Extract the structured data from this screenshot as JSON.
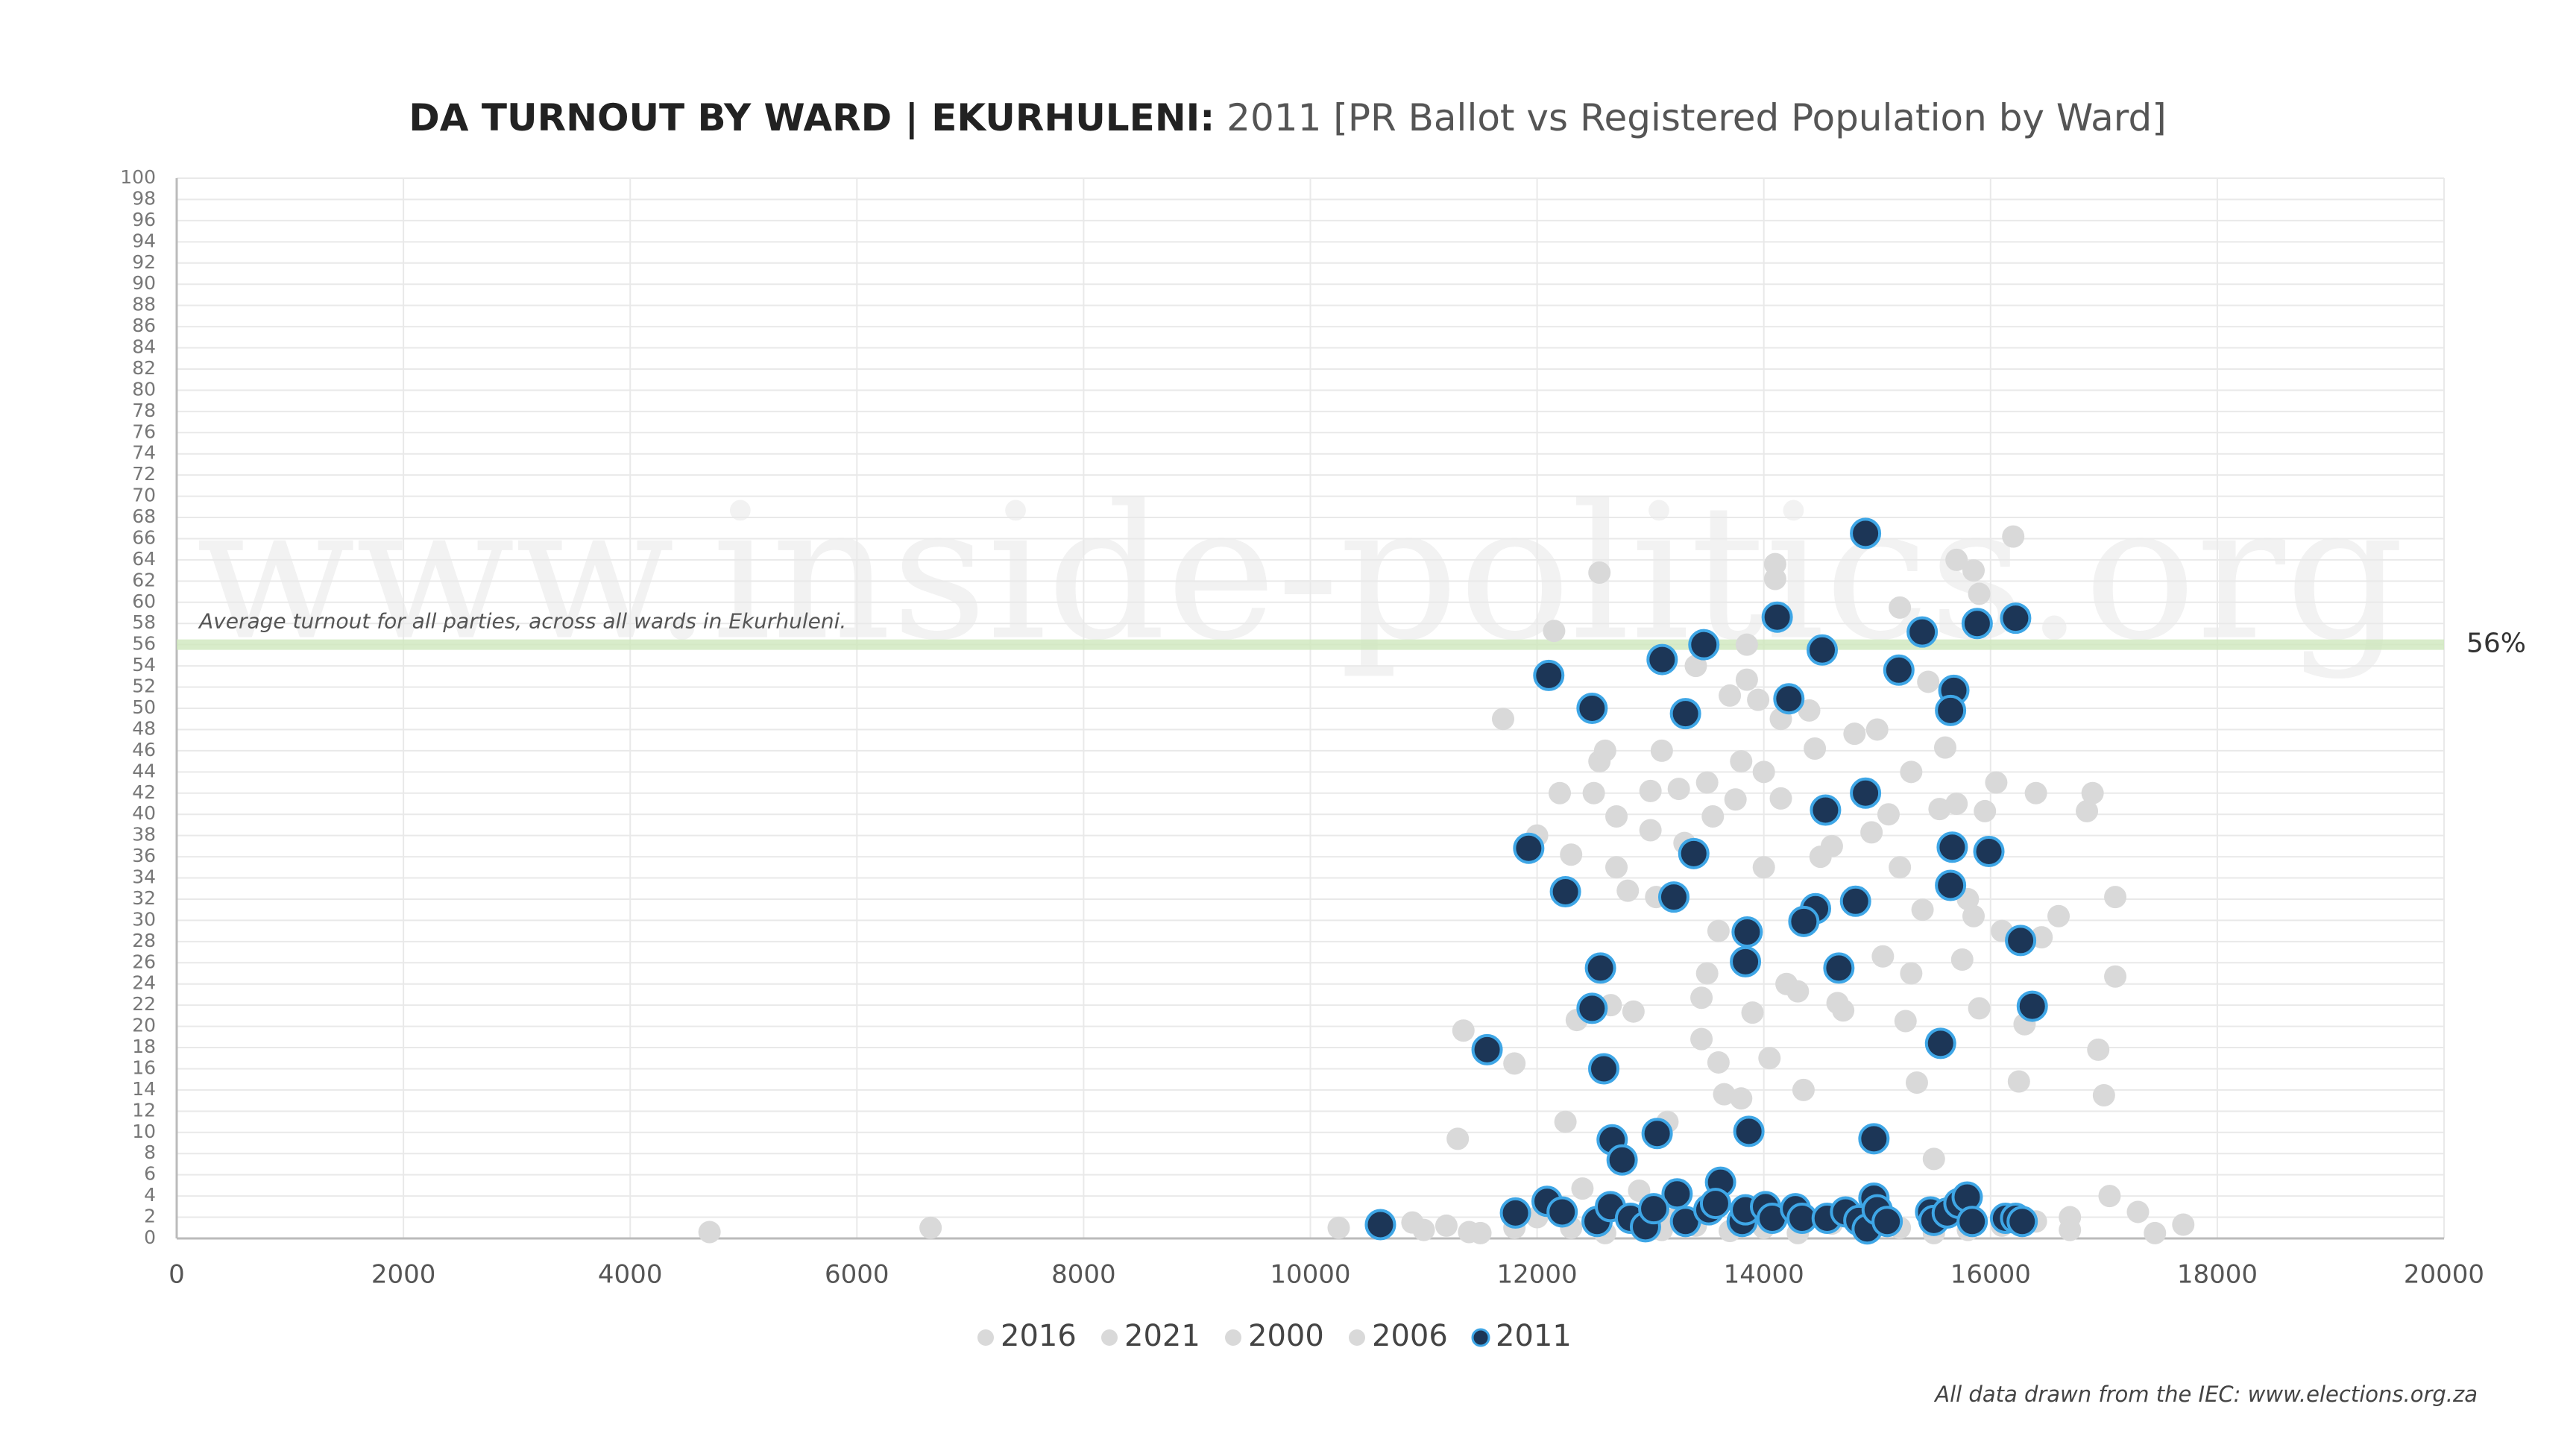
{
  "chart_data": {
    "type": "scatter",
    "title": "DA TURNOUT BY WARD | EKURHULENI:",
    "subtitle": "2011 [PR Ballot vs Registered Population by Ward]",
    "watermark": "www.inside-politics.org",
    "footer": "All data drawn from the IEC: www.elections.org.za",
    "reference_line": {
      "value": 56,
      "label": "56%",
      "note": "Average turnout for all parties, across all wards in Ekurhuleni.",
      "color": "#cfe8bd"
    },
    "xlim": [
      0,
      20000
    ],
    "xticks": [
      0,
      2000,
      4000,
      6000,
      8000,
      10000,
      12000,
      14000,
      16000,
      18000,
      20000
    ],
    "ylim": [
      0,
      100
    ],
    "yticks": [
      0,
      2,
      4,
      6,
      8,
      10,
      12,
      14,
      16,
      18,
      20,
      22,
      24,
      26,
      28,
      30,
      32,
      34,
      36,
      38,
      40,
      42,
      44,
      46,
      48,
      50,
      52,
      54,
      56,
      58,
      60,
      62,
      64,
      66,
      68,
      70,
      72,
      74,
      76,
      78,
      80,
      82,
      84,
      86,
      88,
      90,
      92,
      94,
      96,
      98,
      100
    ],
    "grid": true,
    "legend": "bottom",
    "series": [
      {
        "name": "2016",
        "color": "#d9d9d9",
        "stroke": "#d9d9d9",
        "x": [
          4700,
          6650,
          10250,
          10900,
          11000,
          11200,
          11400,
          11300,
          11350,
          11700,
          11800,
          12000,
          12150,
          12200,
          12250,
          12300,
          12350,
          12400,
          12500,
          12550,
          12550,
          12600,
          12650,
          12700,
          12700,
          12800,
          12850,
          12900,
          13000,
          13000,
          13050,
          13100,
          13150
        ],
        "values": [
          0.6,
          1,
          1,
          1.5,
          0.8,
          1.2,
          0.6,
          9.4,
          19.6,
          49,
          16.5,
          38,
          57.3,
          42,
          11,
          36.2,
          20.6,
          4.7,
          42,
          45,
          62.8,
          46,
          22,
          39.8,
          35,
          32.8,
          21.4,
          4.5,
          38.5,
          42.2,
          32.2,
          46,
          11
        ]
      },
      {
        "name": "2021",
        "color": "#d9d9d9",
        "stroke": "#d9d9d9",
        "x": [
          13200,
          13250,
          13300,
          13400,
          13450,
          13450,
          13500,
          13500,
          13550,
          13600,
          13600,
          13650,
          13700,
          13750,
          13800,
          13800,
          13850,
          13850,
          13900,
          13950,
          14000,
          14000,
          14050,
          14100,
          14100,
          14150,
          14150,
          14200,
          14300,
          14350,
          14400,
          14450,
          14500
        ],
        "values": [
          1.8,
          42.4,
          37.3,
          54,
          22.7,
          18.8,
          43,
          25,
          39.8,
          16.6,
          29,
          13.6,
          51.2,
          41.4,
          45,
          13.2,
          56,
          52.7,
          21.3,
          50.8,
          35,
          44,
          17,
          63.6,
          62.2,
          49,
          41.5,
          24,
          23.3,
          14,
          49.8,
          46.2,
          36
        ]
      },
      {
        "name": "2000",
        "color": "#d9d9d9",
        "stroke": "#d9d9d9",
        "x": [
          14600,
          14650,
          14700,
          14800,
          14900,
          14950,
          15000,
          15050,
          15100,
          15200,
          15200,
          15250,
          15300,
          15300,
          15350,
          15400,
          15450,
          15500,
          15550,
          15600,
          15700,
          15700,
          15750,
          15800,
          15850,
          15850,
          15900,
          15900,
          15950,
          16050,
          16100,
          16200,
          16250
        ],
        "values": [
          37,
          22.2,
          21.5,
          47.6,
          42,
          38.3,
          48,
          26.6,
          40,
          59.5,
          35,
          20.5,
          25,
          44,
          14.7,
          31,
          52.5,
          7.5,
          40.5,
          46.3,
          64,
          41,
          26.3,
          32,
          63,
          30.4,
          60.8,
          21.7,
          40.3,
          43,
          29,
          66.2,
          14.8
        ]
      },
      {
        "name": "2006",
        "color": "#d9d9d9",
        "stroke": "#d9d9d9",
        "x": [
          16300,
          16400,
          16450,
          16600,
          16700,
          16850,
          16900,
          16950,
          17000,
          17050,
          17100,
          17100,
          17300,
          17450,
          17700,
          11500,
          11800,
          12000,
          12300,
          12600,
          13100,
          13400,
          13700,
          14000,
          14300,
          14600,
          14900,
          15200,
          15500,
          15800,
          16100,
          16400,
          16700
        ],
        "values": [
          20.2,
          42,
          28.4,
          30.4,
          2,
          40.3,
          42,
          17.8,
          13.5,
          4,
          32.2,
          24.7,
          2.5,
          0.5,
          1.3,
          0.5,
          1,
          2,
          1,
          0.5,
          0.8,
          1.2,
          0.7,
          1,
          0.5,
          1.4,
          0.6,
          1,
          0.5,
          0.8,
          1.2,
          1.6,
          0.8
        ]
      },
      {
        "name": "2011",
        "color": "#1c3657",
        "stroke": "#3ea6e6",
        "x": [
          10618,
          11926,
          12103,
          12485,
          11559,
          12250,
          12559,
          12485,
          12588,
          12662,
          12750,
          13103,
          13309,
          13471,
          13382,
          13206,
          13059,
          13618,
          13235,
          13853,
          13838,
          13868,
          14118,
          14221,
          14515,
          14544,
          14456,
          14353,
          14662,
          14809,
          14897,
          14897,
          14971,
          15191,
          15397,
          15882,
          16221,
          15676,
          15647,
          15662,
          15647,
          15985,
          16265,
          16368,
          15559,
          11809,
          12088,
          12221,
          12529,
          12647,
          12824,
          12956,
          13029,
          13309,
          13515,
          13574,
          13809,
          13838,
          14015,
          14074,
          14279,
          14338,
          14559,
          14721,
          14838,
          14912,
          14971,
          15000,
          15088,
          15471,
          15500,
          15618,
          15721,
          15794,
          15838,
          16132,
          16221,
          16279
        ],
        "values": [
          1.3,
          36.8,
          53.1,
          50,
          17.8,
          32.7,
          25.5,
          21.7,
          16,
          9.3,
          7.4,
          54.6,
          49.5,
          56,
          36.3,
          32.2,
          9.9,
          5.3,
          4.2,
          28.9,
          26.1,
          10.1,
          58.6,
          50.9,
          55.5,
          40.4,
          31.1,
          29.9,
          25.5,
          31.8,
          66.5,
          42,
          9.4,
          53.6,
          57.2,
          58,
          58.5,
          51.7,
          49.8,
          36.9,
          33.3,
          36.5,
          28.1,
          21.9,
          18.4,
          2.4,
          3.5,
          2.5,
          1.6,
          3,
          1.9,
          1.1,
          2.8,
          1.6,
          2.7,
          3.3,
          1.6,
          2.7,
          3,
          1.9,
          2.8,
          1.9,
          1.9,
          2.5,
          1.7,
          0.9,
          3.8,
          2.7,
          1.6,
          2.5,
          1.7,
          2.4,
          3.3,
          3.9,
          1.6,
          1.9,
          1.9,
          1.6
        ]
      }
    ]
  }
}
